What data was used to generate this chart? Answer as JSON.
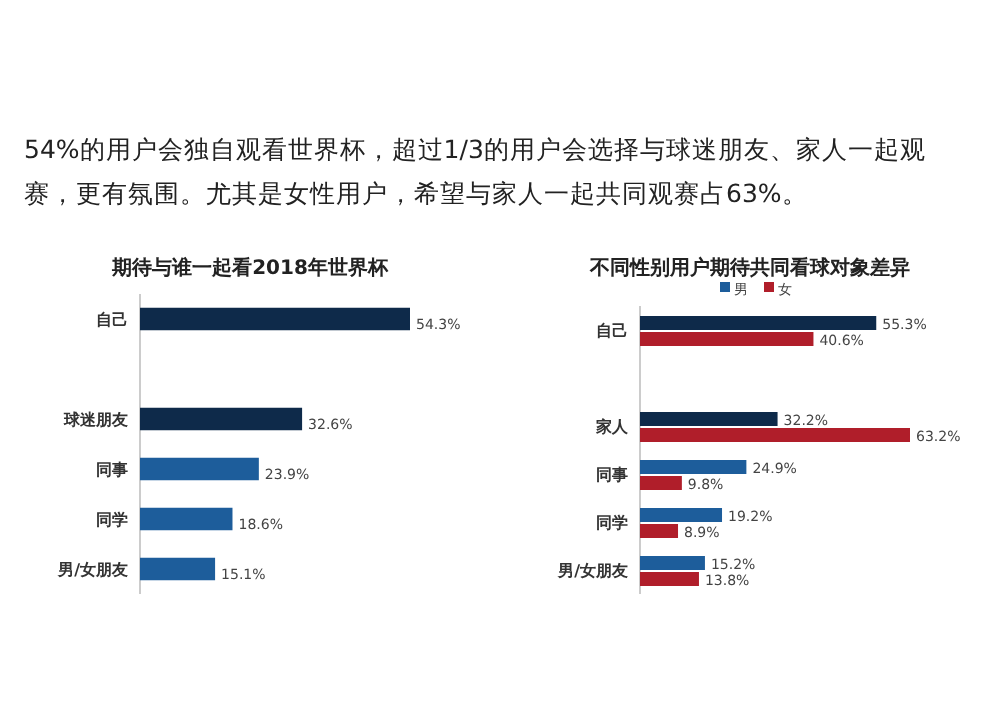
{
  "chart_data": [
    {
      "type": "bar",
      "orientation": "horizontal",
      "title": "期待与谁一起看2018年世界杯",
      "annotations": [
        "54%的用户会独自观看世界杯，超过1/3的用户会选择与球迷朋友、家人一起观赛，更有氛围。尤其是女性用户，希望与家人一起共同观赛占63%。"
      ],
      "categories": [
        "自己",
        null,
        "球迷朋友",
        "同事",
        "同学",
        "男/女朋友"
      ],
      "values": [
        54.3,
        null,
        32.6,
        23.9,
        18.6,
        15.1
      ],
      "colors": [
        "#0e2a4a",
        null,
        "#0e2a4a",
        "#1d5d9b",
        "#1d5d9b",
        "#1d5d9b"
      ],
      "value_labels": [
        "54.3%",
        null,
        "32.6%",
        "23.9%",
        "18.6%",
        "15.1%"
      ]
    },
    {
      "type": "bar",
      "orientation": "horizontal",
      "title": "不同性别用户期待共同看球对象差异",
      "legend": "top",
      "categories": [
        "自己",
        null,
        "家人",
        "同事",
        "同学",
        "男/女朋友"
      ],
      "series": [
        {
          "name": "男",
          "color": "#1d5d9b",
          "colors": [
            "#0e2a4a",
            null,
            "#0e2a4a",
            "#1d5d9b",
            "#1d5d9b",
            "#1d5d9b"
          ],
          "values": [
            55.3,
            null,
            32.2,
            24.9,
            19.2,
            15.2
          ],
          "value_labels": [
            "55.3%",
            null,
            "32.2%",
            "24.9%",
            "19.2%",
            "15.2%"
          ]
        },
        {
          "name": "女",
          "color": "#b01e2a",
          "values": [
            40.6,
            null,
            63.2,
            9.8,
            8.9,
            13.8
          ],
          "value_labels": [
            "40.6%",
            null,
            "63.2%",
            "9.8%",
            "8.9%",
            "13.8%"
          ]
        }
      ]
    }
  ]
}
